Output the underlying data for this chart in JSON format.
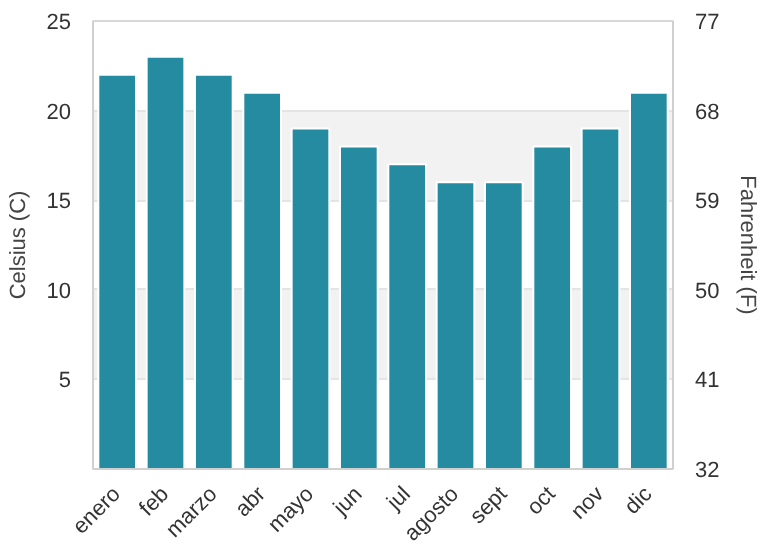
{
  "chart_data": {
    "type": "bar",
    "categories": [
      "enero",
      "feb",
      "marzo",
      "abr",
      "mayo",
      "jun",
      "jul",
      "agosto",
      "sept",
      "oct",
      "nov",
      "dic"
    ],
    "series": [
      {
        "color": "#258ba1",
        "values": [
          22,
          23,
          22,
          21,
          19,
          18,
          17,
          16,
          16,
          18,
          19,
          21
        ]
      }
    ],
    "ylabel": "Celsius (C)",
    "y2label": "Fahrenheit (F)",
    "ylim": [
      0,
      25
    ],
    "yticks": [
      {
        "value": 0,
        "label": null
      },
      5,
      10,
      15,
      20,
      25
    ],
    "y2lim": [
      32,
      77
    ],
    "y2ticks": [
      32,
      41,
      50,
      59,
      68,
      77
    ],
    "grid": "y"
  }
}
